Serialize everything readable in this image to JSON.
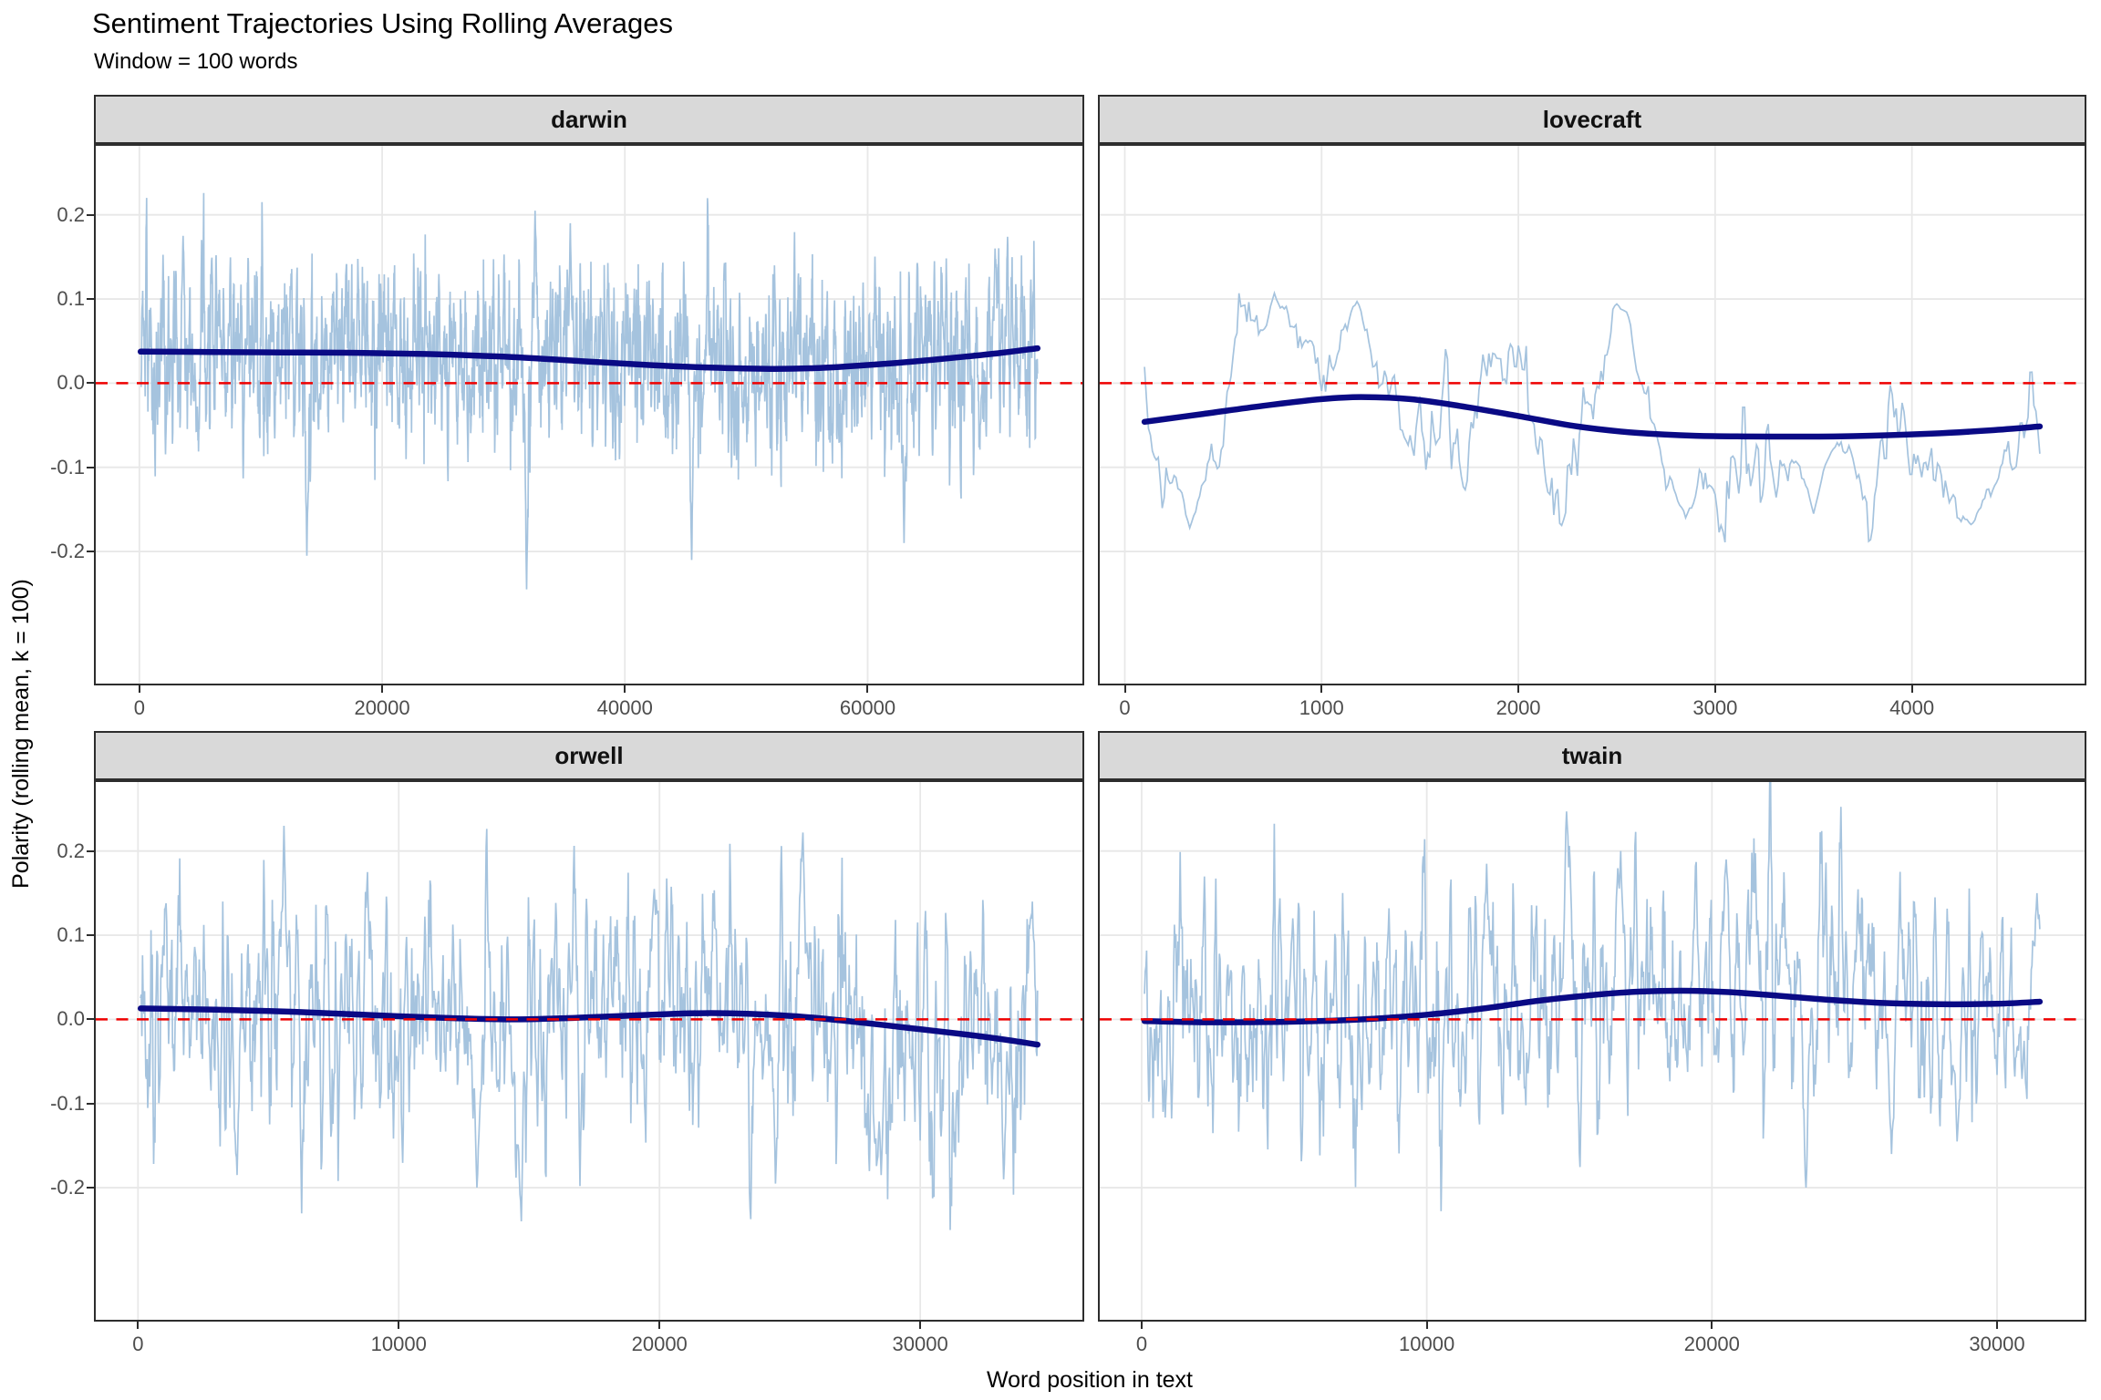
{
  "title": "Sentiment Trajectories Using Rolling Averages",
  "subtitle": "Window = 100 words",
  "axis": {
    "x_title": "Word position in text",
    "y_title": "Polarity (rolling mean, k = 100)"
  },
  "colors": {
    "rolling_line": "#A5C3DE",
    "smooth_line": "#0A0A85",
    "zero_line": "#EE0000",
    "strip_bg": "#D9D9D9",
    "panel_border": "#2D2D2D",
    "grid": "#E8E8E8",
    "tick_text": "#4D4D4D",
    "tick_mark": "#2D2D2D"
  },
  "chart_data": {
    "type": "line",
    "title": "Sentiment Trajectories Using Rolling Averages",
    "subtitle": "Window = 100 words",
    "xlabel": "Word position in text",
    "ylabel": "Polarity (rolling mean, k = 100)",
    "grid": true,
    "legend": false,
    "ylim": [
      -0.357,
      0.282
    ],
    "y_ticks": [
      0.2,
      0.1,
      0.0,
      -0.1,
      -0.2
    ],
    "zero_reference_line": 0.0,
    "facets": [
      {
        "label": "darwin",
        "x_min": 100,
        "x_max": 74000,
        "x_ticks": [
          0,
          20000,
          40000,
          60000
        ],
        "noise_seed": 7,
        "noise_amp": 1.55,
        "noise_p": 0.12,
        "sample_step": 25,
        "window": 100,
        "smooth": [
          [
            100,
            0.0375
          ],
          [
            6000,
            0.037
          ],
          [
            12000,
            0.0365
          ],
          [
            18000,
            0.036
          ],
          [
            24000,
            0.0345
          ],
          [
            30000,
            0.0315
          ],
          [
            36000,
            0.0265
          ],
          [
            42000,
            0.0215
          ],
          [
            47000,
            0.0185
          ],
          [
            52000,
            0.017
          ],
          [
            56000,
            0.018
          ],
          [
            60000,
            0.0215
          ],
          [
            64000,
            0.026
          ],
          [
            68000,
            0.0315
          ],
          [
            71000,
            0.036
          ],
          [
            74000,
            0.0415
          ]
        ],
        "spikes": [
          [
            31900,
            -0.245
          ],
          [
            32600,
            0.205
          ],
          [
            13800,
            -0.205
          ],
          [
            3600,
            0.175
          ],
          [
            45500,
            -0.21
          ],
          [
            63000,
            -0.19
          ],
          [
            35500,
            0.19
          ],
          [
            70500,
            0.16
          ]
        ]
      },
      {
        "label": "lovecraft",
        "x_min": 100,
        "x_max": 4650,
        "x_ticks": [
          0,
          1000,
          2000,
          3000,
          4000
        ],
        "noise_seed": 13,
        "noise_amp": 1.75,
        "noise_p": 0.12,
        "sample_step": 10,
        "window": 100,
        "smooth": [
          [
            100,
            -0.046
          ],
          [
            400,
            -0.0365
          ],
          [
            700,
            -0.027
          ],
          [
            1000,
            -0.019
          ],
          [
            1200,
            -0.0165
          ],
          [
            1450,
            -0.019
          ],
          [
            1700,
            -0.027
          ],
          [
            2000,
            -0.039
          ],
          [
            2300,
            -0.0515
          ],
          [
            2600,
            -0.059
          ],
          [
            2900,
            -0.0625
          ],
          [
            3300,
            -0.0635
          ],
          [
            3700,
            -0.063
          ],
          [
            4100,
            -0.06
          ],
          [
            4400,
            -0.056
          ],
          [
            4650,
            -0.0515
          ]
        ],
        "spikes": [
          [
            330,
            -0.172
          ],
          [
            760,
            0.107
          ],
          [
            1180,
            0.097
          ],
          [
            2530,
            0.087
          ],
          [
            2850,
            -0.16
          ],
          [
            3550,
            0.06
          ],
          [
            3500,
            -0.155
          ],
          [
            4300,
            -0.168
          ]
        ]
      },
      {
        "label": "orwell",
        "x_min": 100,
        "x_max": 34500,
        "x_ticks": [
          0,
          10000,
          20000,
          30000
        ],
        "noise_seed": 5,
        "noise_amp": 2.1,
        "noise_p": 0.12,
        "sample_step": 25,
        "window": 100,
        "smooth": [
          [
            100,
            0.013
          ],
          [
            3000,
            0.0115
          ],
          [
            6000,
            0.009
          ],
          [
            9000,
            0.005
          ],
          [
            12000,
            0.0015
          ],
          [
            14500,
            0.0
          ],
          [
            16500,
            0.0015
          ],
          [
            18500,
            0.004
          ],
          [
            20500,
            0.0065
          ],
          [
            22000,
            0.0075
          ],
          [
            23500,
            0.0065
          ],
          [
            25500,
            0.003
          ],
          [
            27500,
            -0.003
          ],
          [
            29500,
            -0.01
          ],
          [
            31500,
            -0.017
          ],
          [
            33000,
            -0.023
          ],
          [
            34500,
            -0.03
          ]
        ],
        "spikes": [
          [
            14700,
            -0.24
          ],
          [
            5600,
            0.23
          ],
          [
            25500,
            0.222
          ],
          [
            3800,
            -0.185
          ],
          [
            13000,
            -0.2
          ],
          [
            28500,
            -0.185
          ],
          [
            33200,
            -0.19
          ],
          [
            19800,
            0.155
          ],
          [
            8800,
            0.175
          ],
          [
            34300,
            0.14
          ]
        ]
      },
      {
        "label": "twain",
        "x_min": 100,
        "x_max": 31500,
        "x_ticks": [
          0,
          10000,
          20000,
          30000
        ],
        "noise_seed": 9,
        "noise_amp": 1.95,
        "noise_p": 0.12,
        "sample_step": 25,
        "window": 100,
        "smooth": [
          [
            100,
            -0.002
          ],
          [
            2500,
            -0.0035
          ],
          [
            5000,
            -0.003
          ],
          [
            7500,
            -0.0005
          ],
          [
            10000,
            0.0055
          ],
          [
            12000,
            0.013
          ],
          [
            14000,
            0.0225
          ],
          [
            16000,
            0.0295
          ],
          [
            17500,
            0.033
          ],
          [
            19000,
            0.034
          ],
          [
            20500,
            0.0325
          ],
          [
            22000,
            0.029
          ],
          [
            24000,
            0.0235
          ],
          [
            26000,
            0.0195
          ],
          [
            28000,
            0.018
          ],
          [
            30000,
            0.0185
          ],
          [
            31500,
            0.021
          ]
        ],
        "spikes": [
          [
            14900,
            0.247
          ],
          [
            23300,
            -0.2
          ],
          [
            26300,
            -0.16
          ],
          [
            12100,
            0.185
          ],
          [
            16800,
            0.2
          ],
          [
            20500,
            0.19
          ],
          [
            5300,
            0.12
          ],
          [
            28600,
            -0.145
          ],
          [
            31400,
            0.15
          ]
        ]
      }
    ]
  }
}
